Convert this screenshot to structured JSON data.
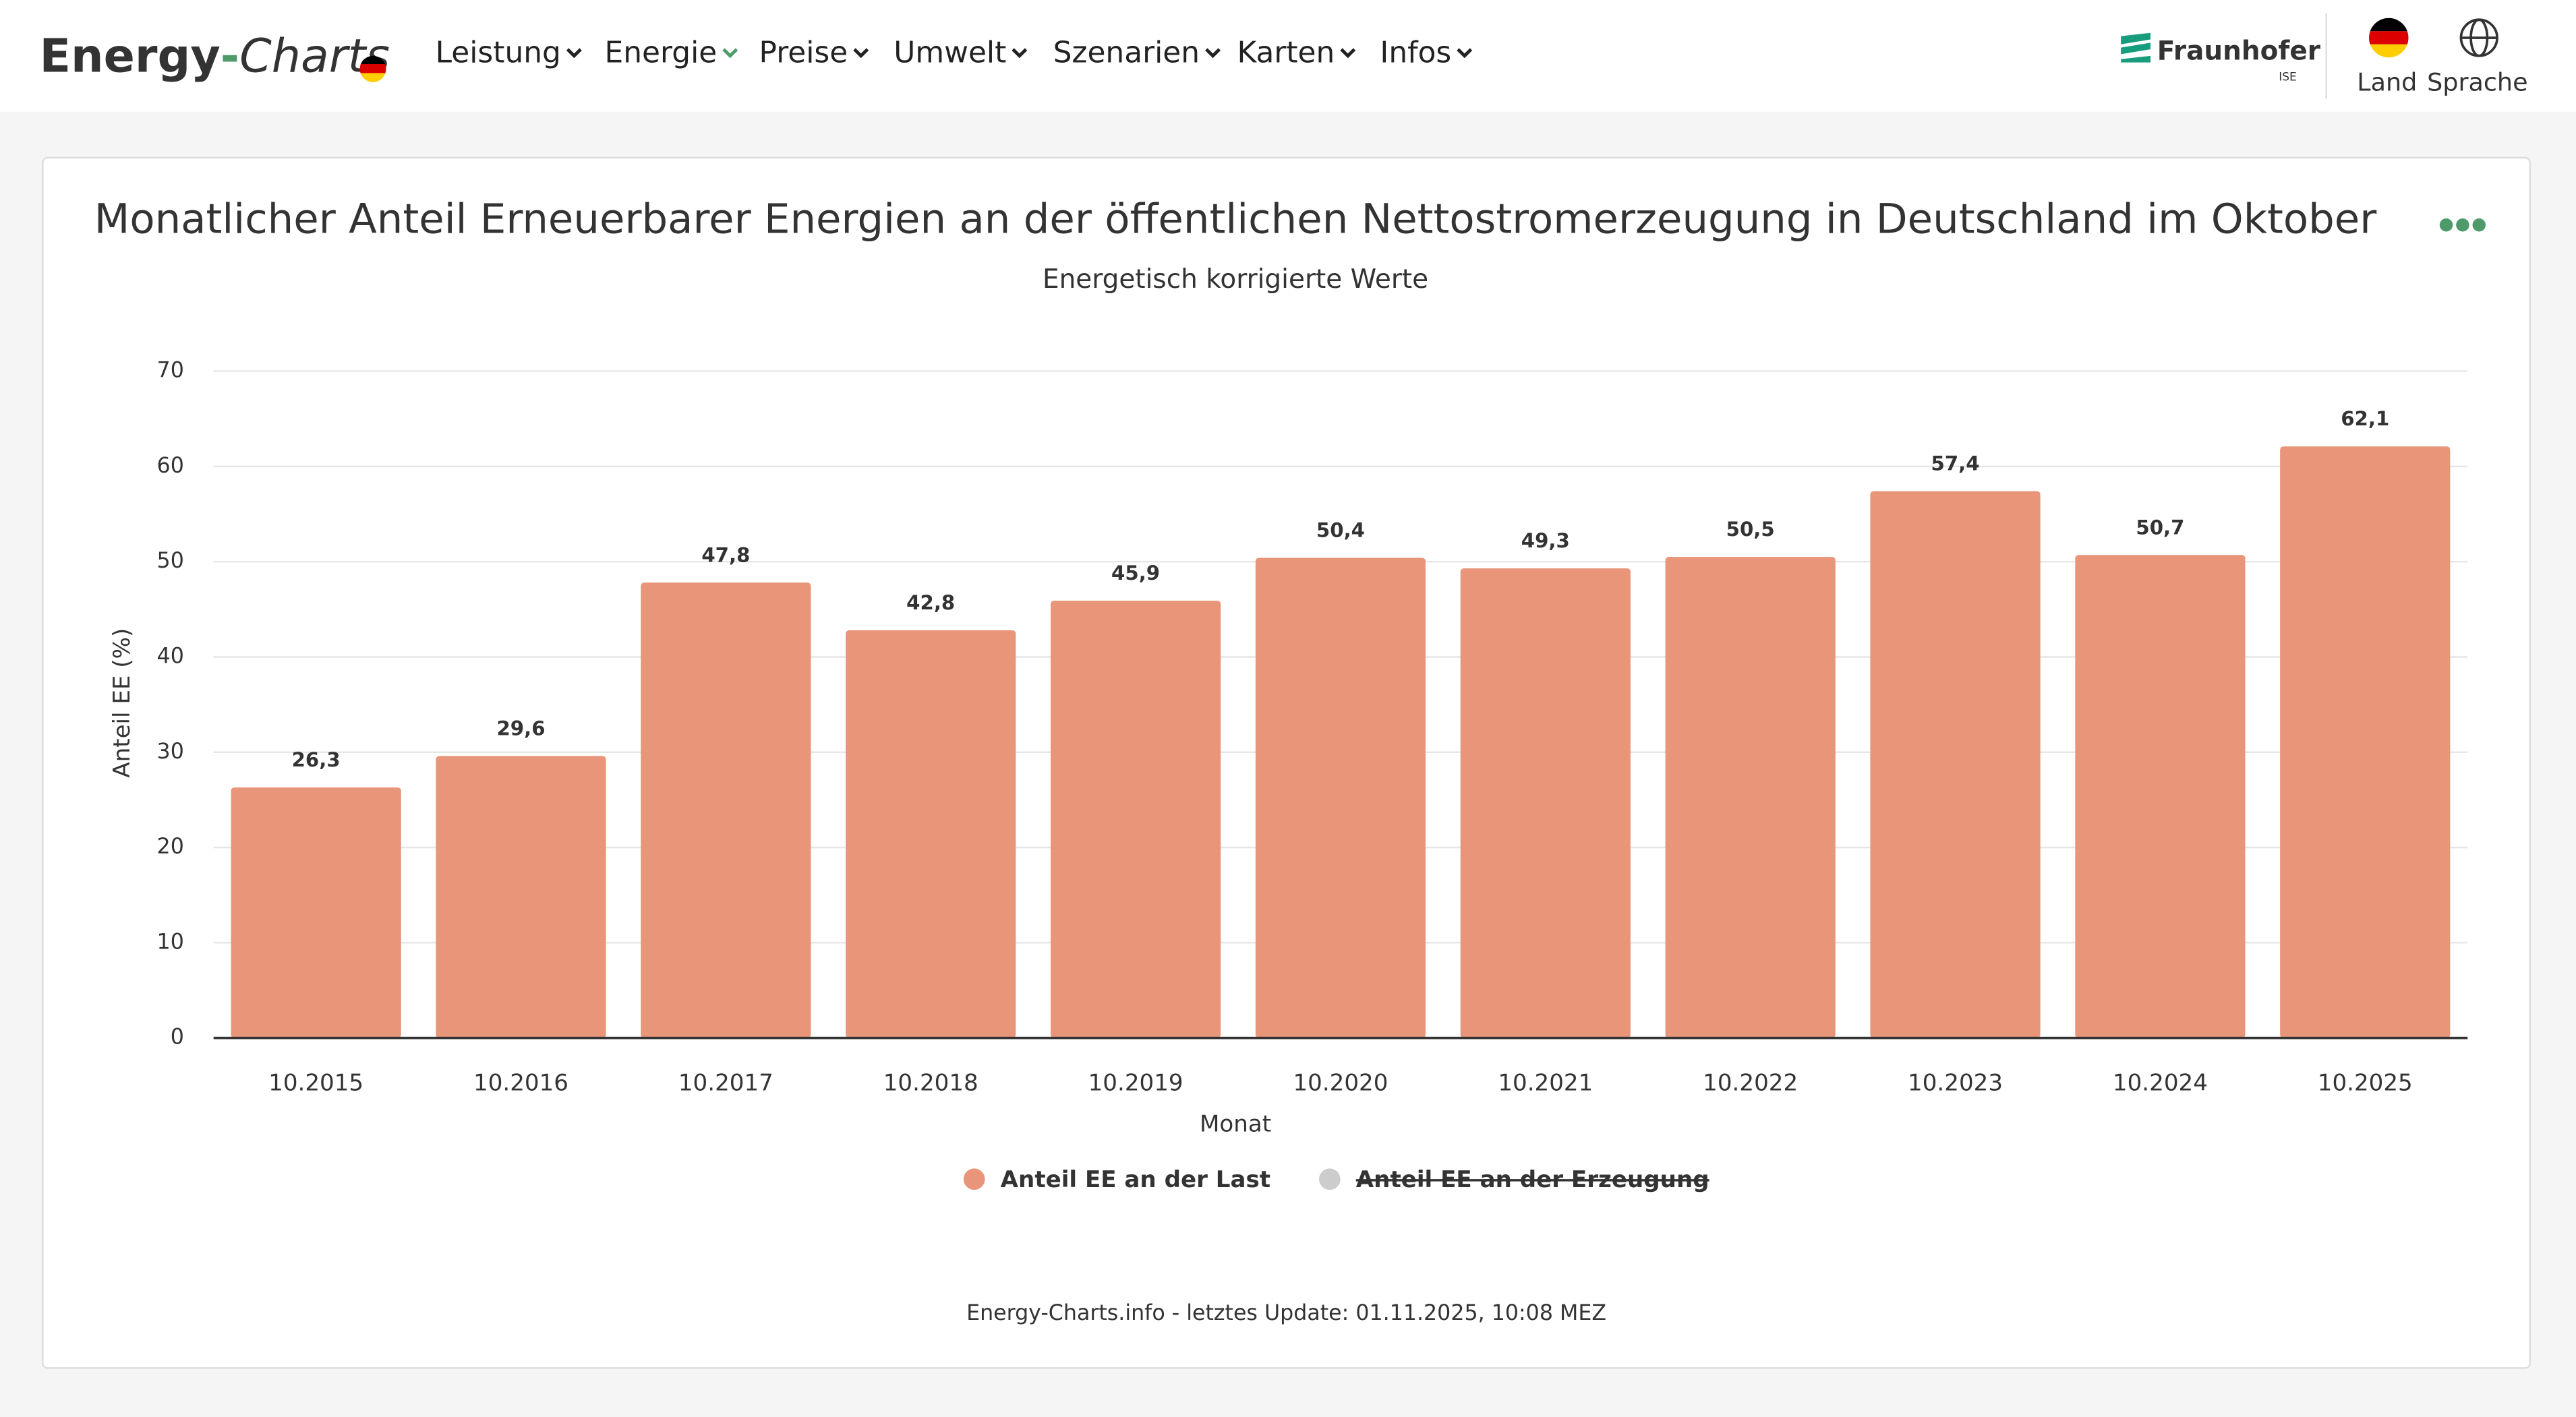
{
  "header": {
    "brand": {
      "part1": "Energy",
      "part2": "-",
      "part3": "Charts"
    },
    "nav": [
      "Leistung",
      "Energie",
      "Preise",
      "Umwelt",
      "Szenarien",
      "Karten",
      "Infos"
    ],
    "partner": "Fraunhofer",
    "partner_sub": "ISE",
    "country": "Land",
    "language": "Sprache"
  },
  "chart_data": {
    "type": "bar",
    "title": "Monatlicher Anteil Erneuerbarer Energien an der öffentlichen Nettostromerzeugung in Deutschland im Oktober",
    "subtitle": "Energetisch korrigierte Werte",
    "x_label": "Monat",
    "y_label": "Anteil EE (%)",
    "categories": [
      "10.2015",
      "10.2016",
      "10.2017",
      "10.2018",
      "10.2019",
      "10.2020",
      "10.2021",
      "10.2022",
      "10.2023",
      "10.2024",
      "10.2025"
    ],
    "series": [
      {
        "name": "Anteil EE an der Last",
        "color": "#e8957a",
        "values": [
          26.3,
          29.6,
          47.8,
          42.8,
          45.9,
          50.4,
          49.3,
          50.5,
          57.4,
          50.7,
          62.1
        ],
        "value_labels": [
          "26,3",
          "29,6",
          "47,8",
          "42,8",
          "45,9",
          "50,4",
          "49,3",
          "50,5",
          "57,4",
          "50,7",
          "62,1"
        ]
      },
      {
        "name": "Anteil EE an der Erzeugung",
        "color": "#cccccc",
        "hidden": true
      }
    ],
    "ylim": [
      0,
      70
    ],
    "yticks": [
      0,
      10,
      20,
      30,
      40,
      50,
      60,
      70
    ],
    "grid": true,
    "legend": "bottom",
    "footer": "Energy-Charts.info - letztes Update: 01.11.2025, 10:08 MEZ"
  }
}
